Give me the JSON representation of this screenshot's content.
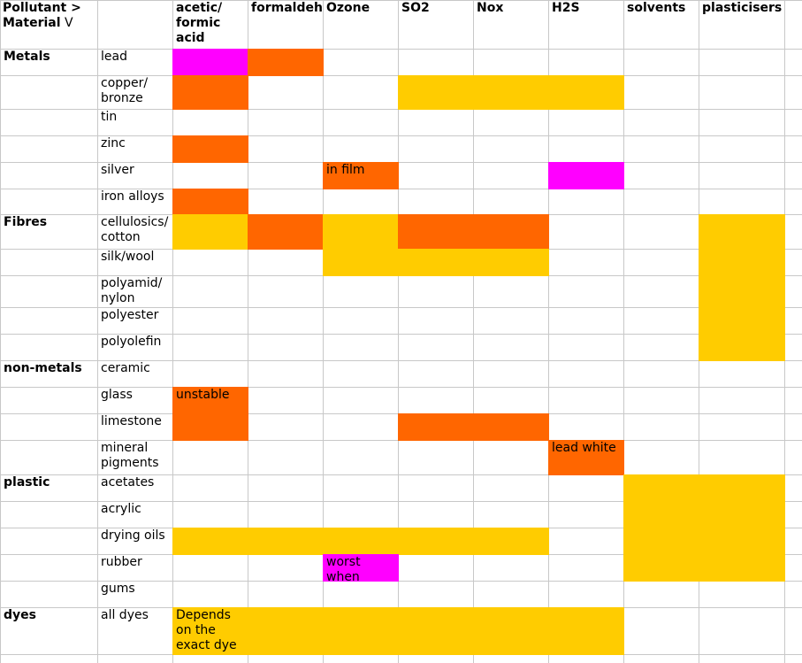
{
  "sheet": {
    "corner": [
      "Pollutant >",
      "Material",
      "V"
    ],
    "columns": [
      "acetic/ formic acid",
      "formaldeh",
      "Ozone",
      "SO2",
      "Nox",
      "H2S",
      "solvents",
      "plasticisers"
    ],
    "rows": [
      {
        "group": "Metals",
        "material": "lead",
        "cells": [
          {
            "color": "#ff00ff"
          },
          {
            "color": "#ff6600"
          },
          null,
          null,
          null,
          null,
          null,
          null
        ]
      },
      {
        "group": null,
        "material": "copper/ bronze",
        "cells": [
          {
            "color": "#ff6600"
          },
          null,
          null,
          {
            "color": "#ffcc00"
          },
          {
            "color": "#ffcc00"
          },
          {
            "color": "#ffcc00"
          },
          null,
          null
        ]
      },
      {
        "group": null,
        "material": "tin",
        "cells": [
          null,
          null,
          null,
          null,
          null,
          null,
          null,
          null
        ]
      },
      {
        "group": null,
        "material": "zinc",
        "cells": [
          {
            "color": "#ff6600"
          },
          null,
          null,
          null,
          null,
          null,
          null,
          null
        ]
      },
      {
        "group": null,
        "material": "silver",
        "cells": [
          null,
          null,
          {
            "color": "#ff6600",
            "text": "in film"
          },
          null,
          null,
          {
            "color": "#ff00ff"
          },
          null,
          null
        ]
      },
      {
        "group": null,
        "material": "iron alloys",
        "cells": [
          {
            "color": "#ff6600"
          },
          null,
          null,
          null,
          null,
          null,
          null,
          null
        ]
      },
      {
        "group": "Fibres",
        "material": "cellulosics/ cotton",
        "cells": [
          {
            "color": "#ffcc00"
          },
          {
            "color": "#ff6600"
          },
          {
            "color": "#ffcc00"
          },
          {
            "color": "#ff6600"
          },
          {
            "color": "#ff6600"
          },
          null,
          null,
          {
            "color": "#ffcc00"
          }
        ]
      },
      {
        "group": null,
        "material": "silk/wool",
        "cells": [
          null,
          null,
          {
            "color": "#ffcc00"
          },
          {
            "color": "#ffcc00"
          },
          {
            "color": "#ffcc00"
          },
          null,
          null,
          {
            "color": "#ffcc00"
          }
        ]
      },
      {
        "group": null,
        "material": "polyamid/ nylon",
        "cells": [
          null,
          null,
          null,
          null,
          null,
          null,
          null,
          {
            "color": "#ffcc00"
          }
        ]
      },
      {
        "group": null,
        "material": "polyester",
        "cells": [
          null,
          null,
          null,
          null,
          null,
          null,
          null,
          {
            "color": "#ffcc00"
          }
        ]
      },
      {
        "group": null,
        "material": "polyolefin",
        "cells": [
          null,
          null,
          null,
          null,
          null,
          null,
          null,
          {
            "color": "#ffcc00"
          }
        ]
      },
      {
        "group": "non-metals",
        "material": "ceramic",
        "cells": [
          null,
          null,
          null,
          null,
          null,
          null,
          null,
          null
        ]
      },
      {
        "group": null,
        "material": "glass",
        "cells": [
          {
            "color": "#ff6600",
            "text": "unstable"
          },
          null,
          null,
          null,
          null,
          null,
          null,
          null
        ]
      },
      {
        "group": null,
        "material": "limestone",
        "cells": [
          {
            "color": "#ff6600"
          },
          null,
          null,
          {
            "color": "#ff6600"
          },
          {
            "color": "#ff6600"
          },
          null,
          null,
          null
        ]
      },
      {
        "group": null,
        "material": "mineral pigments",
        "cells": [
          null,
          null,
          null,
          null,
          null,
          {
            "color": "#ff6600",
            "text": "lead white"
          },
          null,
          null
        ]
      },
      {
        "group": "plastic",
        "material": "acetates",
        "cells": [
          null,
          null,
          null,
          null,
          null,
          null,
          {
            "color": "#ffcc00"
          },
          {
            "color": "#ffcc00"
          }
        ]
      },
      {
        "group": null,
        "material": "acrylic",
        "cells": [
          null,
          null,
          null,
          null,
          null,
          null,
          {
            "color": "#ffcc00"
          },
          {
            "color": "#ffcc00"
          }
        ]
      },
      {
        "group": null,
        "material": "drying oils",
        "cells": [
          {
            "color": "#ffcc00"
          },
          {
            "color": "#ffcc00"
          },
          {
            "color": "#ffcc00"
          },
          {
            "color": "#ffcc00"
          },
          {
            "color": "#ffcc00"
          },
          null,
          {
            "color": "#ffcc00"
          },
          {
            "color": "#ffcc00"
          }
        ]
      },
      {
        "group": null,
        "material": "rubber",
        "cells": [
          null,
          null,
          {
            "color": "#ff00ff",
            "text": "worst when"
          },
          null,
          null,
          null,
          {
            "color": "#ffcc00"
          },
          {
            "color": "#ffcc00"
          }
        ]
      },
      {
        "group": null,
        "material": "gums",
        "cells": [
          null,
          null,
          null,
          null,
          null,
          null,
          null,
          null
        ]
      },
      {
        "group": "dyes",
        "material": "all dyes",
        "cells": [
          {
            "color": "#ffcc00",
            "text": "Depends on the exact dye"
          },
          {
            "color": "#ffcc00"
          },
          {
            "color": "#ffcc00"
          },
          {
            "color": "#ffcc00"
          },
          {
            "color": "#ffcc00"
          },
          {
            "color": "#ffcc00"
          },
          null,
          null
        ]
      }
    ]
  }
}
